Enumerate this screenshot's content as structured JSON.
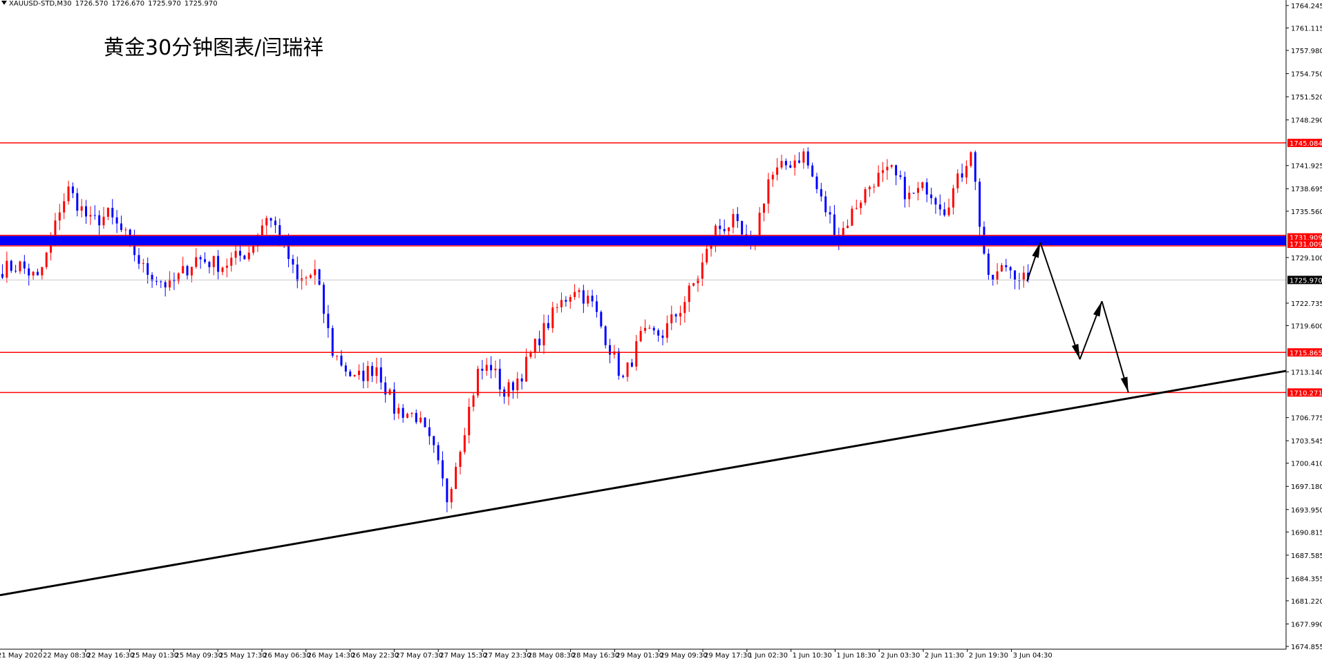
{
  "header": {
    "symbol": "XAUUSD-STD,M30",
    "open": "1726.570",
    "high": "1726.670",
    "low": "1725.970",
    "close": "1725.970"
  },
  "title": "黄金30分钟图表/闫瑞祥",
  "colors": {
    "bull": "#ff0000",
    "bear": "#0000ff",
    "level_line": "#ff0000",
    "trend_line": "#000000",
    "band_fill": "#0000ff",
    "label_bg": "#ff0000",
    "current_label_bg": "#000000",
    "grid": "#c8c8c8"
  },
  "chart_data": {
    "type": "candlestick",
    "y_range": [
      1674.855,
      1765.8
    ],
    "y_ticks": [
      "1764.245",
      "1761.115",
      "1757.980",
      "1754.750",
      "1751.520",
      "1748.290",
      "1741.925",
      "1738.695",
      "1735.560",
      "1729.100",
      "1722.735",
      "1719.600",
      "1713.140",
      "1706.775",
      "1703.545",
      "1700.410",
      "1697.180",
      "1693.950",
      "1690.815",
      "1687.585",
      "1684.355",
      "1681.220",
      "1677.990",
      "1674.855"
    ],
    "x_labels": [
      "21 May 2020",
      "22 May 08:30",
      "22 May 16:30",
      "25 May 01:30",
      "25 May 09:30",
      "25 May 17:30",
      "26 May 06:30",
      "26 May 14:30",
      "26 May 22:30",
      "27 May 07:30",
      "27 May 15:30",
      "27 May 23:30",
      "28 May 08:30",
      "28 May 16:30",
      "29 May 01:30",
      "29 May 09:30",
      "29 May 17:30",
      "1 Jun 02:30",
      "1 Jun 10:30",
      "1 Jun 18:30",
      "2 Jun 03:30",
      "2 Jun 11:30",
      "2 Jun 19:30",
      "3 Jun 04:30"
    ],
    "price_levels": [
      {
        "value": 1745.084,
        "label": "1745.084"
      },
      {
        "value": 1715.865,
        "label": "1715.865"
      },
      {
        "value": 1710.271,
        "label": "1710.271"
      }
    ],
    "resistance_band": {
      "upper": 1731.909,
      "lower": 1731.009,
      "upper_label": "1731.909",
      "lower_label": "1731.009"
    },
    "current_price": {
      "value": 1725.97,
      "label": "1725.970"
    },
    "trendline": [
      {
        "bar": 0,
        "price": 1682.0
      },
      {
        "bar": 292,
        "price": 1713.3
      }
    ],
    "projection_path": [
      {
        "bar": 233,
        "price": 1725.8
      },
      {
        "bar": 236,
        "price": 1731.2
      },
      {
        "bar": 245,
        "price": 1714.9
      },
      {
        "bar": 250,
        "price": 1723.0
      },
      {
        "bar": 256,
        "price": 1710.3
      }
    ],
    "keypoints": [
      [
        0,
        1727.5
      ],
      [
        4,
        1728.0
      ],
      [
        8,
        1726.0
      ],
      [
        11,
        1731.0
      ],
      [
        13,
        1736.0
      ],
      [
        15,
        1738.5
      ],
      [
        20,
        1734.0
      ],
      [
        24,
        1735.0
      ],
      [
        28,
        1732.0
      ],
      [
        32,
        1727.5
      ],
      [
        38,
        1725.0
      ],
      [
        44,
        1729.0
      ],
      [
        50,
        1728.0
      ],
      [
        56,
        1730.0
      ],
      [
        60,
        1735.0
      ],
      [
        63,
        1732.5
      ],
      [
        67,
        1725.5
      ],
      [
        71,
        1727.0
      ],
      [
        75,
        1716.0
      ],
      [
        80,
        1712.0
      ],
      [
        85,
        1714.0
      ],
      [
        89,
        1708.0
      ],
      [
        94,
        1707.0
      ],
      [
        98,
        1702.0
      ],
      [
        101,
        1695.5
      ],
      [
        104,
        1703.0
      ],
      [
        108,
        1713.0
      ],
      [
        111,
        1714.0
      ],
      [
        114,
        1710.0
      ],
      [
        118,
        1713.0
      ],
      [
        122,
        1718.0
      ],
      [
        126,
        1722.0
      ],
      [
        130,
        1725.0
      ],
      [
        134,
        1722.5
      ],
      [
        137,
        1718.0
      ],
      [
        141,
        1712.0
      ],
      [
        145,
        1718.0
      ],
      [
        150,
        1718.5
      ],
      [
        154,
        1722.0
      ],
      [
        158,
        1726.5
      ],
      [
        162,
        1733.0
      ],
      [
        166,
        1734.0
      ],
      [
        170,
        1730.0
      ],
      [
        174,
        1740.0
      ],
      [
        178,
        1742.0
      ],
      [
        182,
        1743.5
      ],
      [
        186,
        1737.0
      ],
      [
        190,
        1732.0
      ],
      [
        194,
        1736.5
      ],
      [
        198,
        1740.0
      ],
      [
        202,
        1741.0
      ],
      [
        206,
        1737.5
      ],
      [
        210,
        1739.0
      ],
      [
        214,
        1736.0
      ],
      [
        218,
        1741.0
      ],
      [
        220,
        1744.5
      ],
      [
        222,
        1734.0
      ],
      [
        224,
        1725.5
      ],
      [
        228,
        1728.0
      ],
      [
        231,
        1726.5
      ],
      [
        233,
        1726.0
      ]
    ]
  }
}
